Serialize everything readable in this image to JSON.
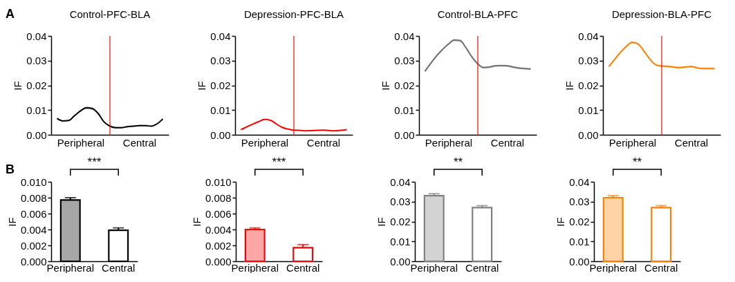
{
  "chart_data": [
    {
      "type": "line",
      "title": "Control-PFC-BLA",
      "ylabel": "IF",
      "annotations": [
        "A"
      ],
      "categories": [
        null,
        null,
        null,
        null,
        "Peripheral",
        null,
        null,
        null,
        null,
        null,
        null,
        null,
        null,
        null,
        "Central",
        null,
        null,
        null,
        null
      ],
      "ylim": [
        0,
        0.04
      ],
      "yticks": [
        {
          "value": 0,
          "label": "0.00"
        },
        0.01,
        0.02,
        0.03,
        0.04
      ],
      "series": [
        {
          "color": "#000000",
          "values": [
            0.0066,
            0.0056,
            0.0058,
            0.0078,
            0.0097,
            0.0109,
            0.0106,
            0.0086,
            0.0052,
            0.0035,
            0.0029,
            0.0029,
            0.0033,
            0.0035,
            0.0037,
            0.0037,
            0.0035,
            0.0044,
            0.0064
          ],
          "lower": [
            0.0063,
            0.0053,
            0.0055,
            0.0075,
            0.0093,
            0.0104,
            0.0101,
            0.0082,
            0.0049,
            0.0032,
            0.0026,
            0.0026,
            0.003,
            0.0032,
            0.0034,
            0.0034,
            0.0032,
            0.0041,
            0.0061
          ],
          "upper": [
            0.0069,
            0.0059,
            0.0061,
            0.0081,
            0.0101,
            0.0114,
            0.0111,
            0.009,
            0.0055,
            0.0038,
            0.0032,
            0.0032,
            0.0036,
            0.0038,
            0.004,
            0.004,
            0.0038,
            0.0047,
            0.0067
          ]
        }
      ]
    },
    {
      "type": "line",
      "title": "Depression-PFC-BLA",
      "ylabel": "IF",
      "categories": [
        null,
        null,
        null,
        null,
        "Peripheral",
        null,
        null,
        null,
        null,
        null,
        null,
        null,
        null,
        null,
        "Central",
        null,
        null,
        null,
        null
      ],
      "ylim": [
        0,
        0.04
      ],
      "yticks": [
        {
          "value": 0,
          "label": "0.00"
        },
        0.01,
        0.02,
        0.03,
        0.04
      ],
      "series": [
        {
          "color": "#ff0000",
          "values": [
            0.0021,
            0.0032,
            0.0043,
            0.0053,
            0.0062,
            0.0059,
            0.0044,
            0.003,
            0.0023,
            0.0019,
            0.0018,
            0.0016,
            0.0017,
            0.0018,
            0.0019,
            0.0017,
            0.0016,
            0.0018,
            0.0021
          ],
          "lower": [
            0.0019,
            0.003,
            0.0041,
            0.0051,
            0.006,
            0.0057,
            0.0042,
            0.0028,
            0.0021,
            0.0017,
            0.0016,
            0.0014,
            0.0015,
            0.0016,
            0.0017,
            0.0015,
            0.0014,
            0.0016,
            0.0019
          ],
          "upper": [
            0.0023,
            0.0034,
            0.0045,
            0.0055,
            0.0064,
            0.0061,
            0.0046,
            0.0032,
            0.0025,
            0.0021,
            0.002,
            0.0018,
            0.0019,
            0.002,
            0.0021,
            0.0019,
            0.0018,
            0.002,
            0.0023
          ]
        }
      ]
    },
    {
      "type": "line",
      "title": "Control-BLA-PFC",
      "ylabel": "IF",
      "categories": [
        null,
        null,
        null,
        null,
        "Peripheral",
        null,
        null,
        null,
        null,
        null,
        null,
        null,
        null,
        null,
        "Central",
        null,
        null,
        null,
        null
      ],
      "ylim": [
        0,
        0.04
      ],
      "yticks": [
        {
          "value": 0,
          "label": "0.00"
        },
        0.01,
        0.02,
        0.03,
        0.04
      ],
      "series": [
        {
          "color": "#707070",
          "values": [
            0.0257,
            0.0289,
            0.032,
            0.0345,
            0.0367,
            0.0383,
            0.0381,
            0.0352,
            0.0315,
            0.0287,
            0.0272,
            0.0274,
            0.0279,
            0.028,
            0.0279,
            0.0274,
            0.027,
            0.0268,
            0.0266
          ],
          "lower": [
            0.0253,
            0.0285,
            0.0316,
            0.0341,
            0.0363,
            0.0378,
            0.0376,
            0.0348,
            0.0311,
            0.0283,
            0.0268,
            0.027,
            0.0275,
            0.0276,
            0.0275,
            0.027,
            0.0266,
            0.0264,
            0.0262
          ],
          "upper": [
            0.0261,
            0.0293,
            0.0324,
            0.0349,
            0.0371,
            0.0388,
            0.0386,
            0.0356,
            0.0319,
            0.0291,
            0.0276,
            0.0278,
            0.0283,
            0.0284,
            0.0283,
            0.0278,
            0.0274,
            0.0272,
            0.027
          ]
        }
      ]
    },
    {
      "type": "line",
      "title": "Depression-BLA-PFC",
      "ylabel": "IF",
      "categories": [
        null,
        null,
        null,
        null,
        "Peripheral",
        null,
        null,
        null,
        null,
        null,
        null,
        null,
        null,
        null,
        "Central",
        null,
        null,
        null,
        null
      ],
      "ylim": [
        0,
        0.04
      ],
      "yticks": [
        {
          "value": 0,
          "label": "0.00"
        },
        0.01,
        0.02,
        0.03,
        0.04
      ],
      "series": [
        {
          "color": "#ff8000",
          "values": [
            0.0276,
            0.0305,
            0.0334,
            0.0358,
            0.0374,
            0.0367,
            0.0338,
            0.0306,
            0.0283,
            0.0278,
            0.0277,
            0.0274,
            0.0272,
            0.0274,
            0.0276,
            0.0271,
            0.0268,
            0.0268,
            0.0268
          ],
          "lower": [
            0.0272,
            0.0301,
            0.033,
            0.0354,
            0.037,
            0.0363,
            0.0334,
            0.0302,
            0.0279,
            0.0274,
            0.0273,
            0.027,
            0.0268,
            0.027,
            0.0272,
            0.0267,
            0.0264,
            0.0264,
            0.0264
          ],
          "upper": [
            0.028,
            0.0309,
            0.0338,
            0.0362,
            0.0378,
            0.0371,
            0.0342,
            0.031,
            0.0287,
            0.0282,
            0.0281,
            0.0278,
            0.0276,
            0.0278,
            0.028,
            0.0275,
            0.0272,
            0.0272,
            0.0272
          ]
        }
      ]
    },
    {
      "type": "bar",
      "ylabel": "IF",
      "annotations": [
        "B",
        "***"
      ],
      "categories": [
        "Peripheral",
        "Central"
      ],
      "ylim": [
        0,
        0.01
      ],
      "yticks": [
        {
          "value": 0,
          "label": "0.000"
        },
        {
          "value": 0.002,
          "label": "0.002"
        },
        {
          "value": 0.004,
          "label": "0.004"
        },
        {
          "value": 0.006,
          "label": "0.006"
        },
        {
          "value": 0.008,
          "label": "0.008"
        },
        {
          "value": 0.01,
          "label": "0.010"
        }
      ],
      "series": [
        {
          "color": "#000000",
          "values": [
            0.0077,
            0.0039
          ],
          "errors": [
            [
              0.0077,
              0.008
            ],
            [
              0.0039,
              0.0042
            ]
          ]
        }
      ]
    },
    {
      "type": "bar",
      "ylabel": "IF",
      "annotations": [
        "***"
      ],
      "categories": [
        "Peripheral",
        "Central"
      ],
      "ylim": [
        0,
        0.01
      ],
      "yticks": [
        {
          "value": 0,
          "label": "0.000"
        },
        {
          "value": 0.002,
          "label": "0.002"
        },
        {
          "value": 0.004,
          "label": "0.004"
        },
        {
          "value": 0.006,
          "label": "0.006"
        },
        {
          "value": 0.008,
          "label": "0.008"
        },
        {
          "value": 0.01,
          "label": "0.010"
        }
      ],
      "series": [
        {
          "color": "#ff0000",
          "values": [
            0.004,
            0.0017
          ],
          "errors": [
            [
              0.004,
              0.0042
            ],
            [
              0.0017,
              0.0021
            ]
          ]
        }
      ]
    },
    {
      "type": "bar",
      "ylabel": "IF",
      "annotations": [
        "**"
      ],
      "categories": [
        "Peripheral",
        "Central"
      ],
      "ylim": [
        0,
        0.04
      ],
      "yticks": [
        {
          "value": 0,
          "label": "0.00"
        },
        0.01,
        0.02,
        0.03,
        0.04
      ],
      "series": [
        {
          "color": "#808080",
          "values": [
            0.033,
            0.027
          ],
          "errors": [
            [
              0.033,
              0.034
            ],
            [
              0.027,
              0.028
            ]
          ]
        }
      ]
    },
    {
      "type": "bar",
      "ylabel": "IF",
      "annotations": [
        "**"
      ],
      "categories": [
        "Peripheral",
        "Central"
      ],
      "ylim": [
        0,
        0.04
      ],
      "yticks": [
        {
          "value": 0,
          "label": "0.00"
        },
        0.01,
        0.02,
        0.03,
        0.04
      ],
      "series": [
        {
          "color": "#ff8000",
          "values": [
            0.032,
            0.027
          ],
          "errors": [
            [
              0.032,
              0.033
            ],
            [
              0.027,
              0.028
            ]
          ]
        }
      ]
    }
  ]
}
